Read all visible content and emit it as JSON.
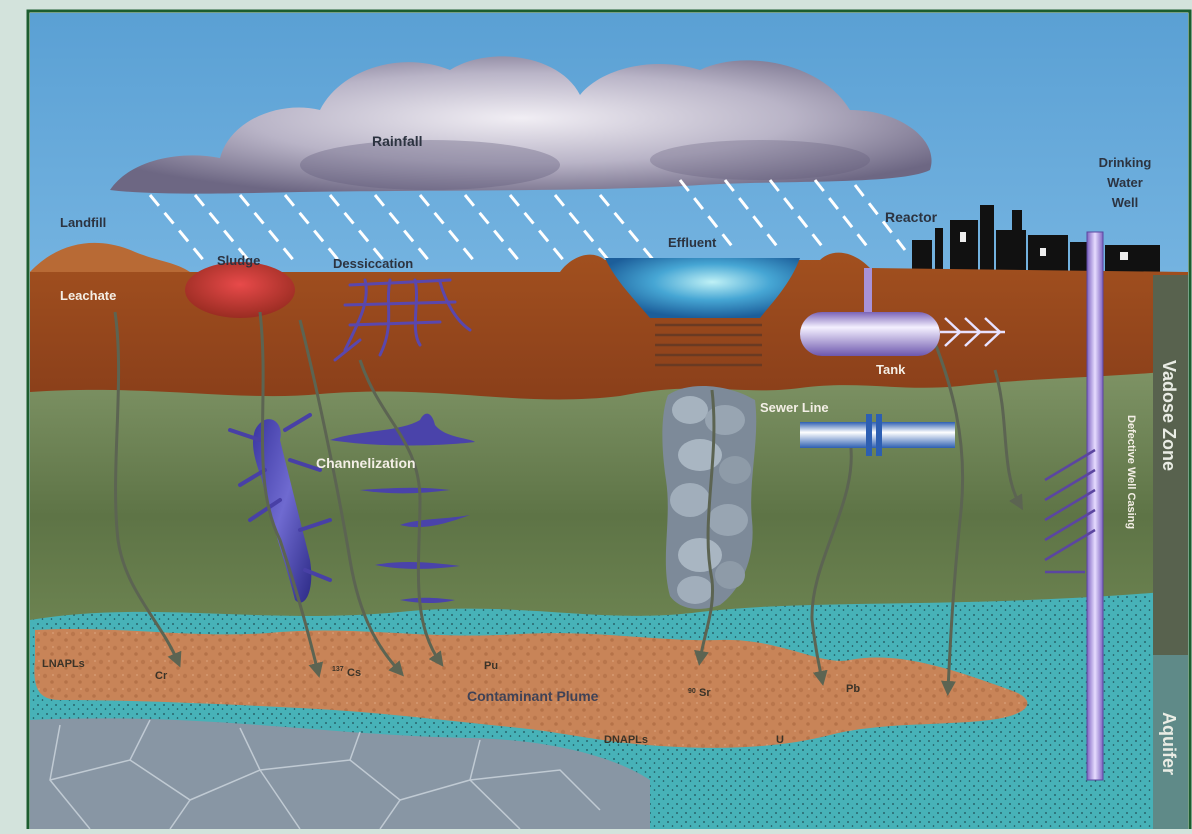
{
  "labels": {
    "rainfall": "Rainfall",
    "drinking_well_line1": "Drinking",
    "drinking_well_line2": "Water",
    "drinking_well_line3": "Well",
    "landfill": "Landfill",
    "sludge": "Sludge",
    "dessiccation": "Dessiccation",
    "effluent": "Effluent",
    "reactor": "Reactor",
    "leachate": "Leachate",
    "tank": "Tank",
    "sewer_line": "Sewer Line",
    "channelization": "Channelization",
    "defective_well_casing": "Defective Well Casing",
    "vadose_zone": "Vadose Zone",
    "aquifer": "Aquifer",
    "lnapls": "LNAPLs",
    "dnapls": "DNAPLs",
    "contaminant_plume": "Contaminant Plume"
  },
  "contaminants": {
    "cr": "Cr",
    "cs_mass": "137",
    "cs": "Cs",
    "pu": "Pu",
    "sr_mass": "90",
    "sr": "Sr",
    "pb": "Pb",
    "u": "U"
  },
  "colors": {
    "sky": "#5ea3d6",
    "topsoil": "#9b4a22",
    "vadose_green": "#6e8458",
    "aquifer_teal": "#49b3b9",
    "plume": "#c9865a",
    "bedrock": "#8493a2",
    "frame": "#1c5d2f",
    "well": "#a88fd8",
    "channel": "#5246a8"
  }
}
